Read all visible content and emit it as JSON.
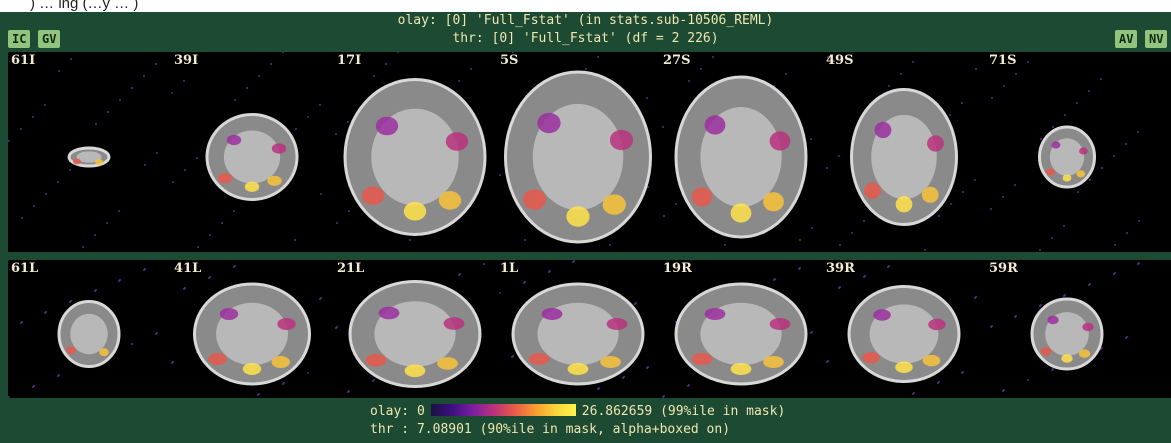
{
  "top_caption": ") … ing (…y … )",
  "header": {
    "olay_line": "olay: [0] 'Full_Fstat' (in stats.sub-10506_REML)",
    "thr_line": "thr: [0] 'Full_Fstat' (df = 2 226)"
  },
  "buttons": {
    "ic": "IC",
    "gv": "GV",
    "av": "AV",
    "nv": "NV"
  },
  "axial_labels": [
    "61I",
    "39I",
    "17I",
    "5S",
    "27S",
    "49S",
    "71S"
  ],
  "sagittal_labels": [
    "61L",
    "41L",
    "21L",
    "1L",
    "19R",
    "39R",
    "59R"
  ],
  "footer": {
    "olay_prefix": "olay: 0",
    "olay_suffix": "26.862659 (99%ile in mask)",
    "thr_text": "thr : 7.08901 (90%ile in mask, alpha+boxed on)"
  },
  "colors": {
    "frame": "#1d4a33",
    "button": "#93c47d",
    "text": "#f0e6b0"
  }
}
